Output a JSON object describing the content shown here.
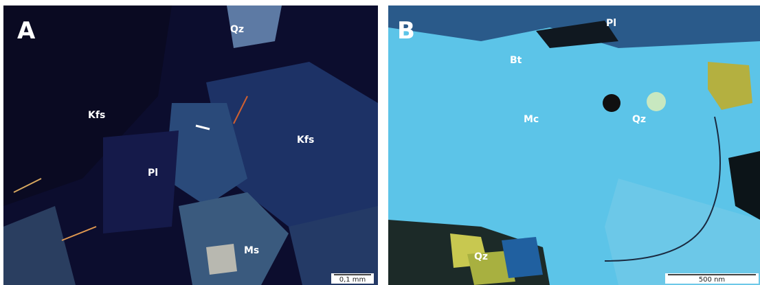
{
  "panels": [
    {
      "label": "A",
      "annotations": [
        "Qz",
        "Kfs",
        "Kfs",
        "Pl",
        "Ms"
      ],
      "scale_bar": "0,1 mm"
    },
    {
      "label": "B",
      "annotations": [
        "Pl",
        "Bt",
        "Mc",
        "Qz",
        "Qz"
      ],
      "scale_bar": "500 nm"
    }
  ]
}
